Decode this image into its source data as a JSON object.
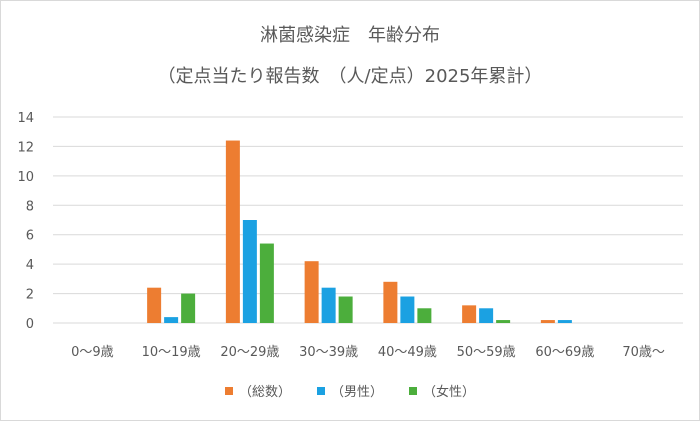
{
  "chart_data": {
    "type": "bar",
    "title": "淋菌感染症　年齢分布",
    "subtitle": "（定点当たり報告数　（人/定点）2025年累計）",
    "categories": [
      "0～9歳",
      "10～19歳",
      "20～29歳",
      "30～39歳",
      "40～49歳",
      "50～59歳",
      "60～69歳",
      "70歳～"
    ],
    "ylim": [
      0,
      14
    ],
    "yticks": [
      0,
      2,
      4,
      6,
      8,
      10,
      12,
      14
    ],
    "grid": true,
    "legend_position": "bottom",
    "series": [
      {
        "name": "（総数）",
        "color": "#ed7d31",
        "values": [
          0,
          2.4,
          12.4,
          4.2,
          2.8,
          1.2,
          0.2,
          0
        ]
      },
      {
        "name": "（男性）",
        "color": "#1ba1e2",
        "values": [
          0,
          0.4,
          7.0,
          2.4,
          1.8,
          1.0,
          0.2,
          0
        ]
      },
      {
        "name": "（女性）",
        "color": "#4cae3c",
        "values": [
          0,
          2.0,
          5.4,
          1.8,
          1.0,
          0.2,
          0,
          0
        ]
      }
    ]
  }
}
